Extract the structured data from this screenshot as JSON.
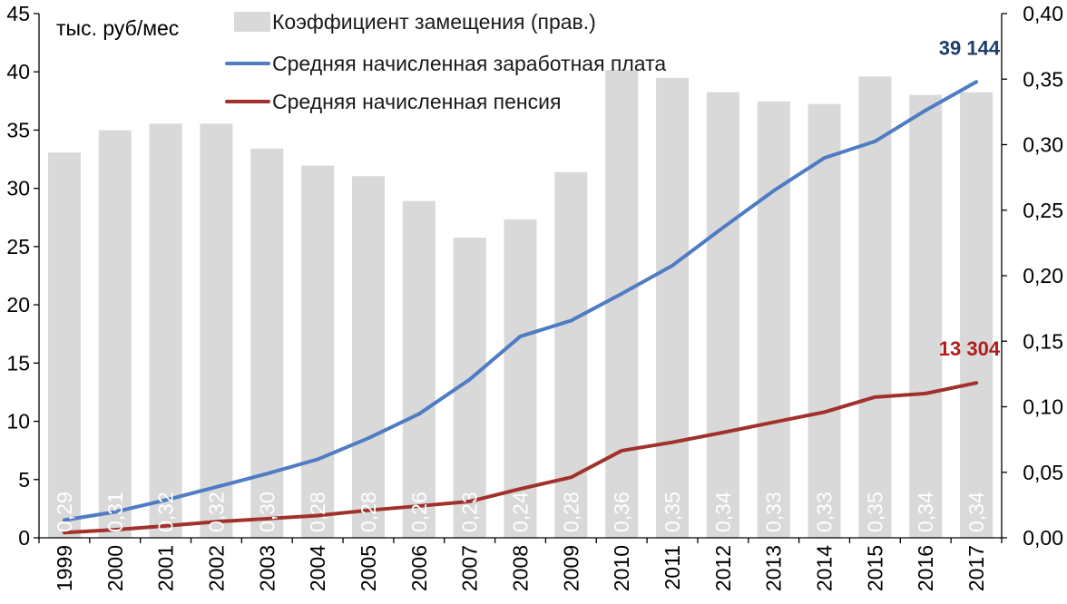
{
  "chart_data": {
    "type": "bar",
    "title": "",
    "unit_label": "тыс. руб/мес",
    "categories": [
      "1999",
      "2000",
      "2001",
      "2002",
      "2003",
      "2004",
      "2005",
      "2006",
      "2007",
      "2008",
      "2009",
      "2010",
      "2011",
      "2012",
      "2013",
      "2014",
      "2015",
      "2016",
      "2017"
    ],
    "y_left": {
      "min": 0,
      "max": 45,
      "step": 5,
      "tick_labels": [
        "0",
        "5",
        "10",
        "15",
        "20",
        "25",
        "30",
        "35",
        "40",
        "45"
      ]
    },
    "y_right": {
      "min": 0,
      "max": 0.4,
      "step": 0.05,
      "tick_labels": [
        "0,00",
        "0,05",
        "0,10",
        "0,15",
        "0,20",
        "0,25",
        "0,30",
        "0,35",
        "0,40"
      ]
    },
    "grid": true,
    "legend_position": "top-center",
    "series": [
      {
        "name": "Коэффициент замещения (прав.)",
        "type": "bar",
        "axis": "right",
        "color": "#d9d9d9",
        "values": [
          0.294,
          0.311,
          0.316,
          0.316,
          0.297,
          0.284,
          0.276,
          0.257,
          0.229,
          0.243,
          0.279,
          0.357,
          0.351,
          0.34,
          0.333,
          0.331,
          0.352,
          0.338,
          0.34
        ],
        "labels": [
          "0,29",
          "0,31",
          "0,32",
          "0,32",
          "0,30",
          "0,28",
          "0,28",
          "0,26",
          "0,23",
          "0,24",
          "0,28",
          "0,36",
          "0,35",
          "0,34",
          "0,33",
          "0,33",
          "0,35",
          "0,34",
          "0,34"
        ]
      },
      {
        "name": "Средняя начисленная заработная плата",
        "type": "line",
        "axis": "left",
        "color": "#4f7cc3",
        "values": [
          1.52,
          2.22,
          3.24,
          4.36,
          5.5,
          6.74,
          8.55,
          10.63,
          13.59,
          17.29,
          18.64,
          20.95,
          23.37,
          26.63,
          29.79,
          32.61,
          34.03,
          36.7,
          39.14
        ],
        "end_label": "39 144",
        "end_label_color": "#1f3d6b"
      },
      {
        "name": "Средняя начисленная пенсия",
        "type": "line",
        "axis": "left",
        "color": "#a0312b",
        "values": [
          0.45,
          0.69,
          1.02,
          1.38,
          1.64,
          1.91,
          2.36,
          2.73,
          3.12,
          4.2,
          5.19,
          7.48,
          8.2,
          9.04,
          9.92,
          10.79,
          12.08,
          12.39,
          13.3
        ],
        "end_label": "13 304",
        "end_label_color": "#b01c1c"
      }
    ]
  }
}
